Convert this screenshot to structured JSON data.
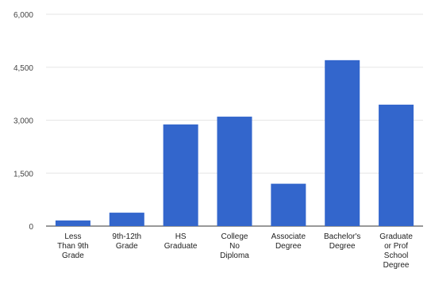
{
  "chart_data": {
    "type": "bar",
    "title": "",
    "xlabel": "",
    "ylabel": "",
    "categories": [
      "Less Than 9th Grade",
      "9th-12th Grade",
      "HS Graduate",
      "College No Diploma",
      "Associate Degree",
      "Bachelor's Degree",
      "Graduate or Prof School Degree"
    ],
    "category_lines": [
      [
        "Less",
        "Than 9th",
        "Grade"
      ],
      [
        "9th-12th",
        "Grade"
      ],
      [
        "HS",
        "Graduate"
      ],
      [
        "College",
        "No",
        "Diploma"
      ],
      [
        "Associate",
        "Degree"
      ],
      [
        "Bachelor's",
        "Degree"
      ],
      [
        "Graduate",
        "or Prof",
        "School",
        "Degree"
      ]
    ],
    "values": [
      160,
      380,
      2880,
      3100,
      1200,
      4700,
      3440
    ],
    "ylim": [
      0,
      6000
    ],
    "yticks": [
      0,
      1500,
      3000,
      4500,
      6000
    ],
    "ytick_labels": [
      "0",
      "1,500",
      "3,000",
      "4,500",
      "6,000"
    ],
    "grid": true,
    "legend": "none",
    "bar_color": "#3366cc"
  }
}
